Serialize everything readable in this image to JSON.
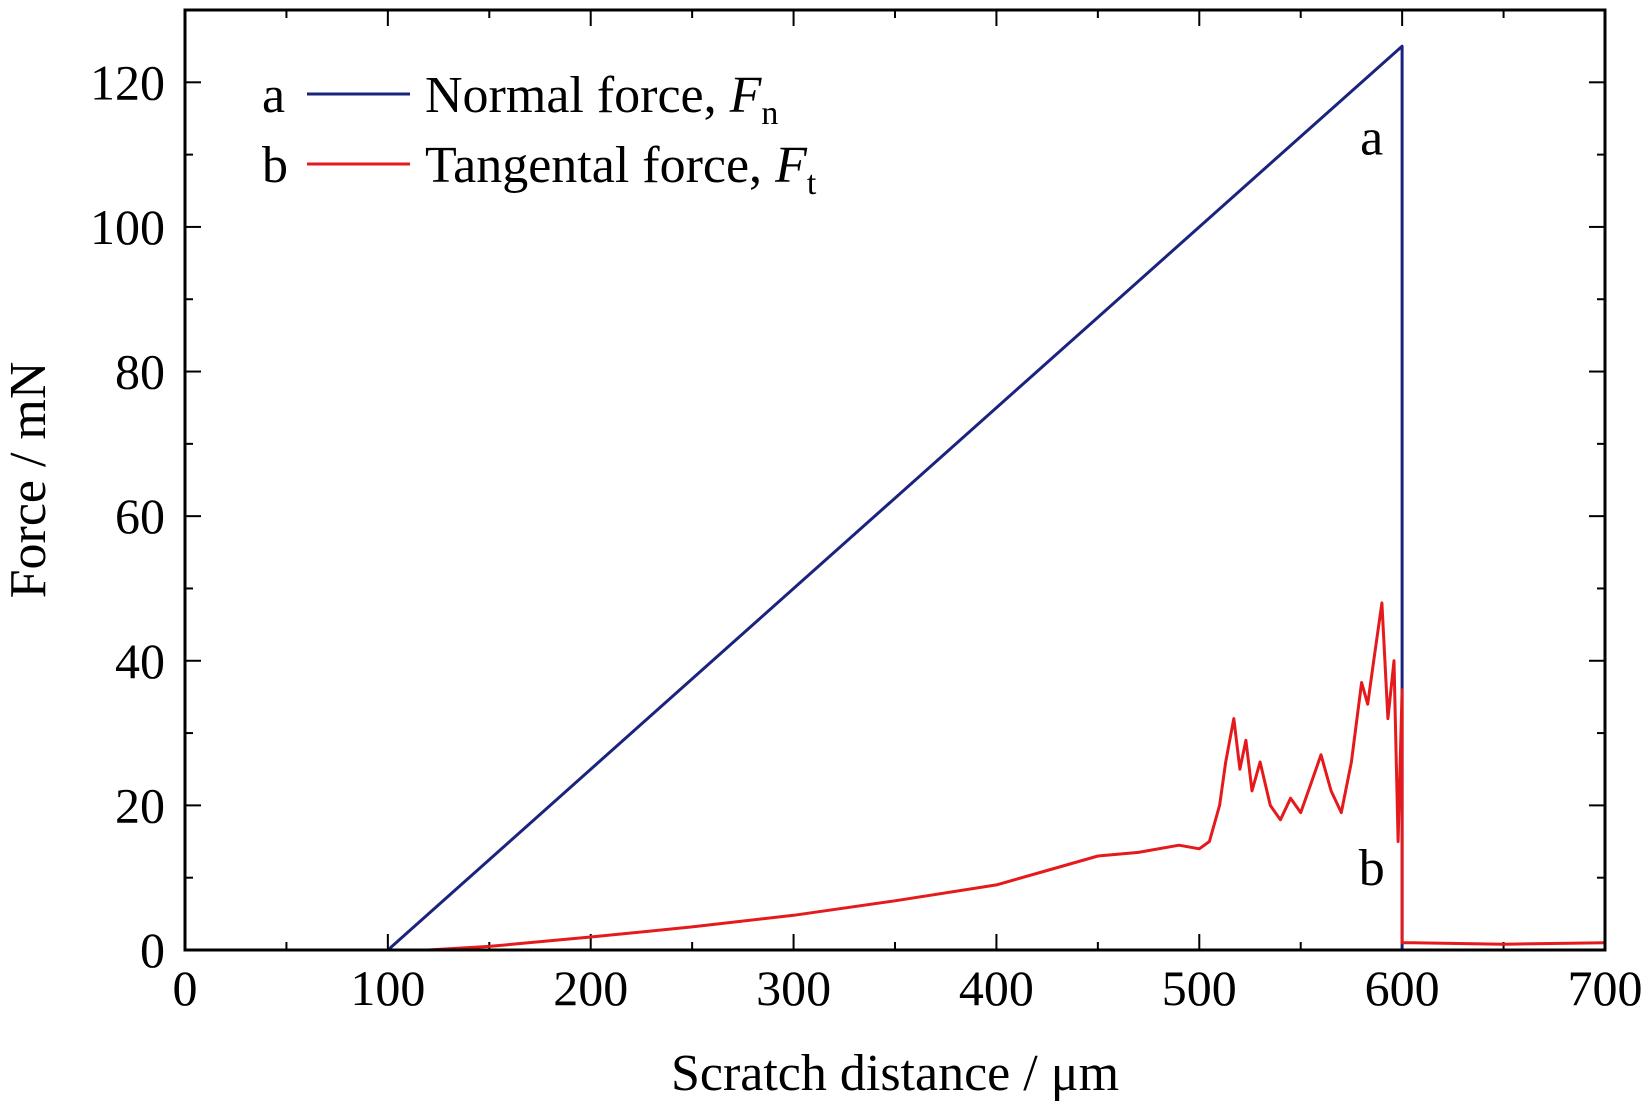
{
  "chart_data": {
    "type": "line",
    "xlabel": "Scratch distance / μm",
    "ylabel": "Force / mN",
    "xlim": [
      0,
      700
    ],
    "ylim": [
      0,
      130
    ],
    "xticks": [
      "0",
      "100",
      "200",
      "300",
      "400",
      "500",
      "600",
      "700"
    ],
    "yticks": [
      "0",
      "20",
      "40",
      "60",
      "80",
      "100",
      "120"
    ],
    "grid": false,
    "legend_position": "top-left",
    "series": [
      {
        "name": "Normal force, F_n",
        "legend_marker": "a",
        "legend_text": "Normal force,",
        "legend_symbol": "F",
        "legend_sub": "n",
        "color": "#1a237e",
        "x": [
          0,
          100,
          600,
          600,
          700
        ],
        "y": [
          0,
          0,
          125,
          0,
          0
        ]
      },
      {
        "name": "Tangental force, F_t",
        "legend_marker": "b",
        "legend_text": "Tangental force,",
        "legend_symbol": "F",
        "legend_sub": "t",
        "color": "#e41a1c",
        "x": [
          0,
          120,
          150,
          200,
          250,
          300,
          350,
          400,
          425,
          450,
          470,
          490,
          500,
          505,
          510,
          513,
          517,
          520,
          523,
          526,
          530,
          535,
          540,
          545,
          550,
          555,
          560,
          565,
          570,
          575,
          580,
          583,
          586,
          590,
          593,
          596,
          598,
          600,
          600,
          605,
          650,
          700
        ],
        "y": [
          0,
          0,
          0.5,
          1.8,
          3.2,
          4.8,
          6.8,
          9.0,
          11,
          13,
          13.5,
          14.5,
          14,
          15,
          20,
          26,
          32,
          25,
          29,
          22,
          26,
          20,
          18,
          21,
          19,
          23,
          27,
          22,
          19,
          26,
          37,
          34,
          40,
          48,
          32,
          40,
          15,
          36,
          1,
          1,
          0.8,
          1
        ]
      }
    ],
    "annotations": [
      {
        "text": "a",
        "x": 585,
        "y": 110
      },
      {
        "text": "b",
        "x": 585,
        "y": 9
      }
    ]
  }
}
